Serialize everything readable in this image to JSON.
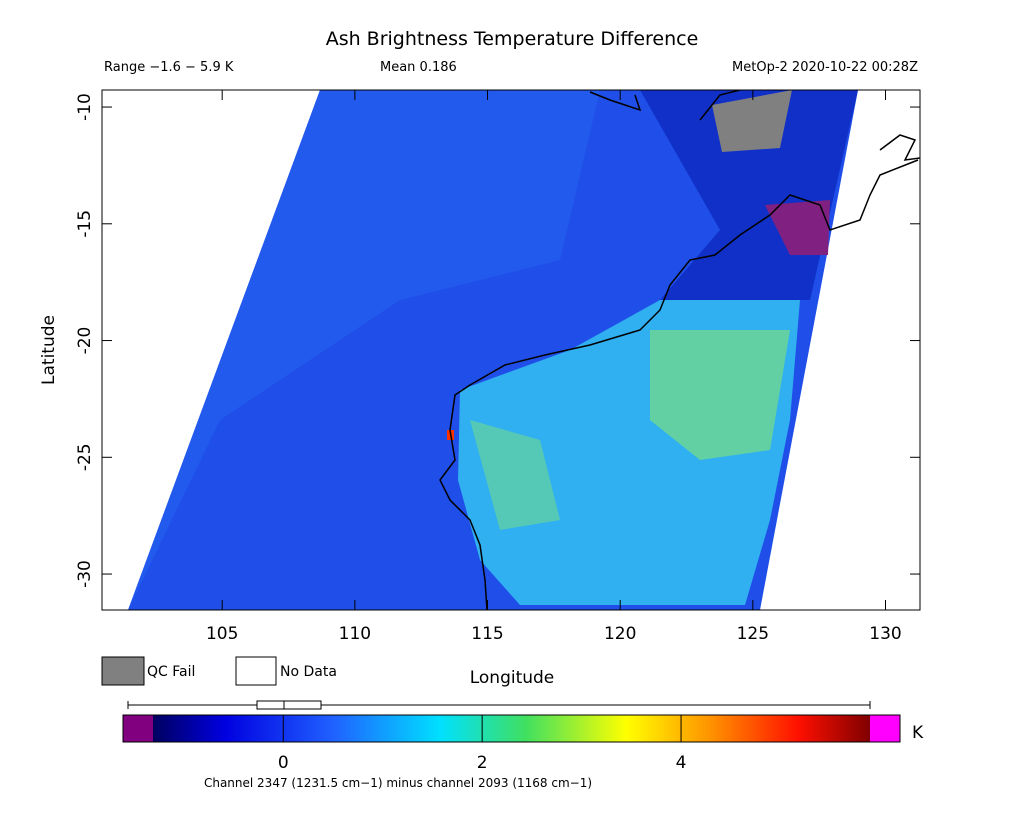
{
  "header": {
    "title": "Ash Brightness Temperature Difference",
    "range": "Range −1.6 − 5.9 K",
    "mean": "Mean 0.186",
    "source": "MetOp-2 2020-10-22 00:28Z"
  },
  "map": {
    "xlabel": "Longitude",
    "ylabel": "Latitude",
    "xlim": [
      100.47,
      131.3
    ],
    "ylim": [
      -31.54,
      -9.27
    ],
    "xticks": [
      105,
      110,
      115,
      120,
      125,
      130
    ],
    "yticks": [
      -10,
      -15,
      -20,
      -25,
      -30
    ]
  },
  "legend": [
    {
      "label": "QC Fail",
      "color": "#808080"
    },
    {
      "label": "No Data",
      "color": "#ffffff"
    }
  ],
  "colorbar": {
    "lim": [
      -1.31,
      5.9
    ],
    "ticks": [
      0,
      2,
      4
    ],
    "unit": "K"
  },
  "footnote": "Channel 2347 (1231.5 cm−1) minus channel 2093 (1168 cm−1)"
}
